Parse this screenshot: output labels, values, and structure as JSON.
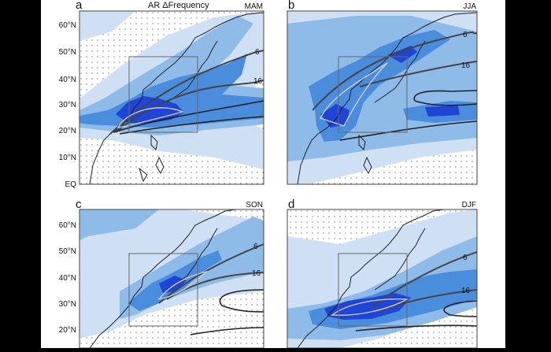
{
  "figure": {
    "panels": [
      {
        "id": "a",
        "letter": "a",
        "title": "AR ΔFrequency",
        "season": "MAM",
        "lat_labels": [
          "60°N",
          "50°N",
          "40°N",
          "30°N",
          "20°N",
          "10°N",
          "EQ"
        ],
        "contour_labels": [
          "6",
          "16"
        ]
      },
      {
        "id": "b",
        "letter": "b",
        "title": "",
        "season": "JJA",
        "lat_labels": [],
        "contour_labels": [
          "6",
          "16"
        ]
      },
      {
        "id": "c",
        "letter": "c",
        "title": "",
        "season": "SON",
        "lat_labels": [
          "60°N",
          "50°N",
          "40°N",
          "30°N",
          "20°N"
        ],
        "contour_labels": [
          "6",
          "16"
        ]
      },
      {
        "id": "d",
        "letter": "d",
        "title": "",
        "season": "DJF",
        "lat_labels": [],
        "contour_labels": [
          "6",
          "16"
        ]
      }
    ],
    "colors": {
      "shade_light": "#cfe0f5",
      "shade_mid": "#8fbbe9",
      "shade_strong": "#4a8ddc",
      "shade_max": "#1f44d6",
      "background": "#ffffff",
      "contour": "#444444"
    }
  }
}
